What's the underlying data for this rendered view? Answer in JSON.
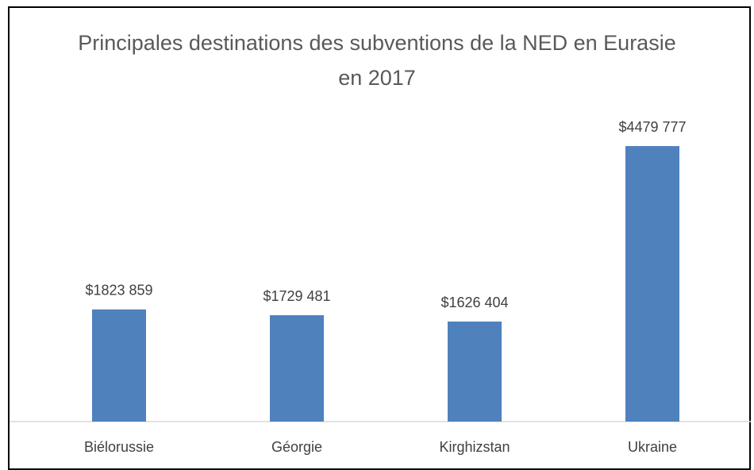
{
  "chart_data": {
    "type": "bar",
    "title": "Principales destinations des subventions de la NED en Eurasie en 2017",
    "categories": [
      "Biélorussie",
      "Géorgie",
      "Kirghizstan",
      "Ukraine"
    ],
    "values": [
      1823859,
      1729481,
      1626404,
      4479777
    ],
    "value_labels": [
      "$1823 859",
      "$1729 481",
      "$1626 404",
      "$4479 777"
    ],
    "color": "#4f81bd"
  }
}
